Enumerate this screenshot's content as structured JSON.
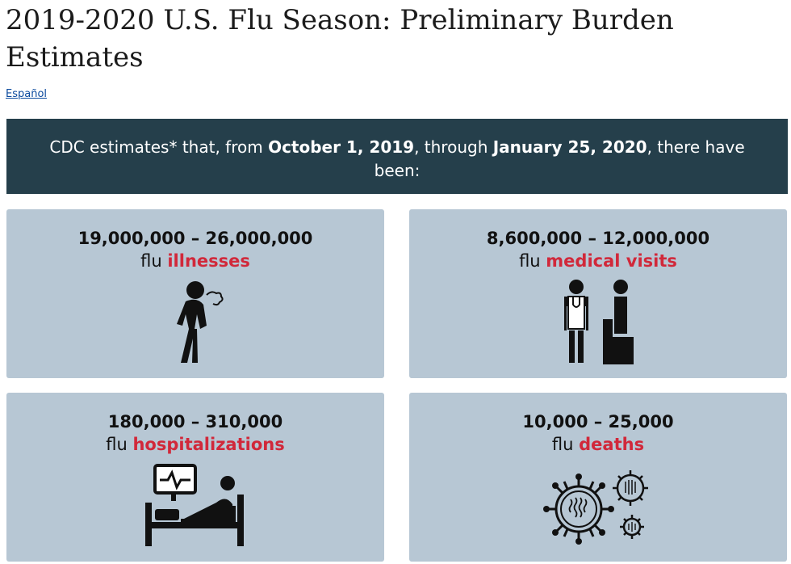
{
  "page": {
    "title": "2019-2020 U.S. Flu Season: Preliminary Burden Estimates",
    "language_link": "Español"
  },
  "banner": {
    "prefix": "CDC estimates* that, from ",
    "start_date": "October 1, 2019",
    "middle": ", through ",
    "end_date": "January 25, 2020",
    "suffix": ", there have been:"
  },
  "cards": [
    {
      "range": "19,000,000 – 26,000,000",
      "prefix": "flu ",
      "highlight": "illnesses",
      "icon": "sick-person-coughing-icon"
    },
    {
      "range": "8,600,000 – 12,000,000",
      "prefix": "flu ",
      "highlight": "medical visits",
      "icon": "doctor-patient-icon"
    },
    {
      "range": "180,000 – 310,000",
      "prefix": "flu ",
      "highlight": "hospitalizations",
      "icon": "hospital-bed-monitor-icon"
    },
    {
      "range": "10,000 – 25,000",
      "prefix": "flu ",
      "highlight": "deaths",
      "icon": "flu-virus-icon"
    }
  ],
  "colors": {
    "banner_bg": "#253f4b",
    "card_bg": "#b7c7d4",
    "highlight": "#d1283a",
    "link": "#0b4a9e"
  }
}
